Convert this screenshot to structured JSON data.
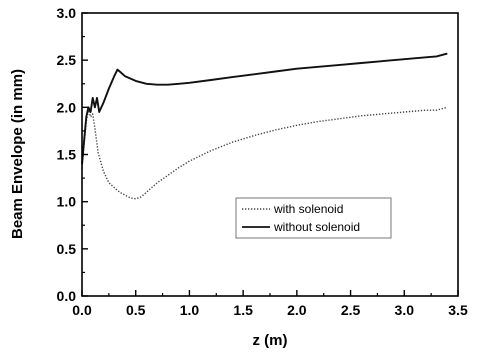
{
  "chart_data": {
    "type": "line",
    "title": "",
    "xlabel": "z (m)",
    "ylabel": "Beam Envelope (in mm)",
    "xlim": [
      0.0,
      3.5
    ],
    "ylim": [
      0.0,
      3.0
    ],
    "x_ticks": [
      0.0,
      0.5,
      1.0,
      1.5,
      2.0,
      2.5,
      3.0,
      3.5
    ],
    "x_tick_labels": [
      "0.0",
      "0.5",
      "1.0",
      "1.5",
      "2.0",
      "2.5",
      "3.0",
      "3.5"
    ],
    "y_ticks": [
      0.0,
      0.5,
      1.0,
      1.5,
      2.0,
      2.5,
      3.0
    ],
    "y_tick_labels": [
      "0.0",
      "0.5",
      "1.0",
      "1.5",
      "2.0",
      "2.5",
      "3.0"
    ],
    "grid": false,
    "legend_position": "center-right",
    "series": [
      {
        "name": "with solenoid",
        "style": "dotted",
        "color": "#444444",
        "x": [
          0.0,
          0.02,
          0.04,
          0.06,
          0.08,
          0.1,
          0.12,
          0.15,
          0.2,
          0.25,
          0.3,
          0.35,
          0.4,
          0.45,
          0.5,
          0.55,
          0.6,
          0.7,
          0.8,
          0.9,
          1.0,
          1.2,
          1.4,
          1.6,
          1.8,
          2.0,
          2.2,
          2.4,
          2.6,
          2.8,
          3.0,
          3.2,
          3.3,
          3.4
        ],
        "y": [
          1.35,
          1.6,
          1.85,
          1.97,
          1.9,
          1.93,
          1.78,
          1.52,
          1.32,
          1.2,
          1.15,
          1.1,
          1.07,
          1.04,
          1.03,
          1.05,
          1.1,
          1.2,
          1.28,
          1.36,
          1.43,
          1.54,
          1.63,
          1.7,
          1.76,
          1.81,
          1.85,
          1.88,
          1.91,
          1.93,
          1.95,
          1.97,
          1.97,
          2.0
        ]
      },
      {
        "name": "without solenoid",
        "style": "solid",
        "color": "#111111",
        "x": [
          0.0,
          0.02,
          0.04,
          0.06,
          0.08,
          0.1,
          0.12,
          0.14,
          0.16,
          0.2,
          0.25,
          0.3,
          0.33,
          0.36,
          0.4,
          0.5,
          0.6,
          0.7,
          0.8,
          0.9,
          1.0,
          1.2,
          1.4,
          1.6,
          1.8,
          2.0,
          2.2,
          2.4,
          2.6,
          2.8,
          3.0,
          3.2,
          3.3,
          3.4
        ],
        "y": [
          1.4,
          1.65,
          1.9,
          2.0,
          1.95,
          2.1,
          2.0,
          2.1,
          1.95,
          2.05,
          2.2,
          2.33,
          2.4,
          2.37,
          2.33,
          2.28,
          2.25,
          2.24,
          2.24,
          2.25,
          2.26,
          2.29,
          2.32,
          2.35,
          2.38,
          2.41,
          2.43,
          2.45,
          2.47,
          2.49,
          2.51,
          2.53,
          2.54,
          2.57
        ]
      }
    ]
  }
}
